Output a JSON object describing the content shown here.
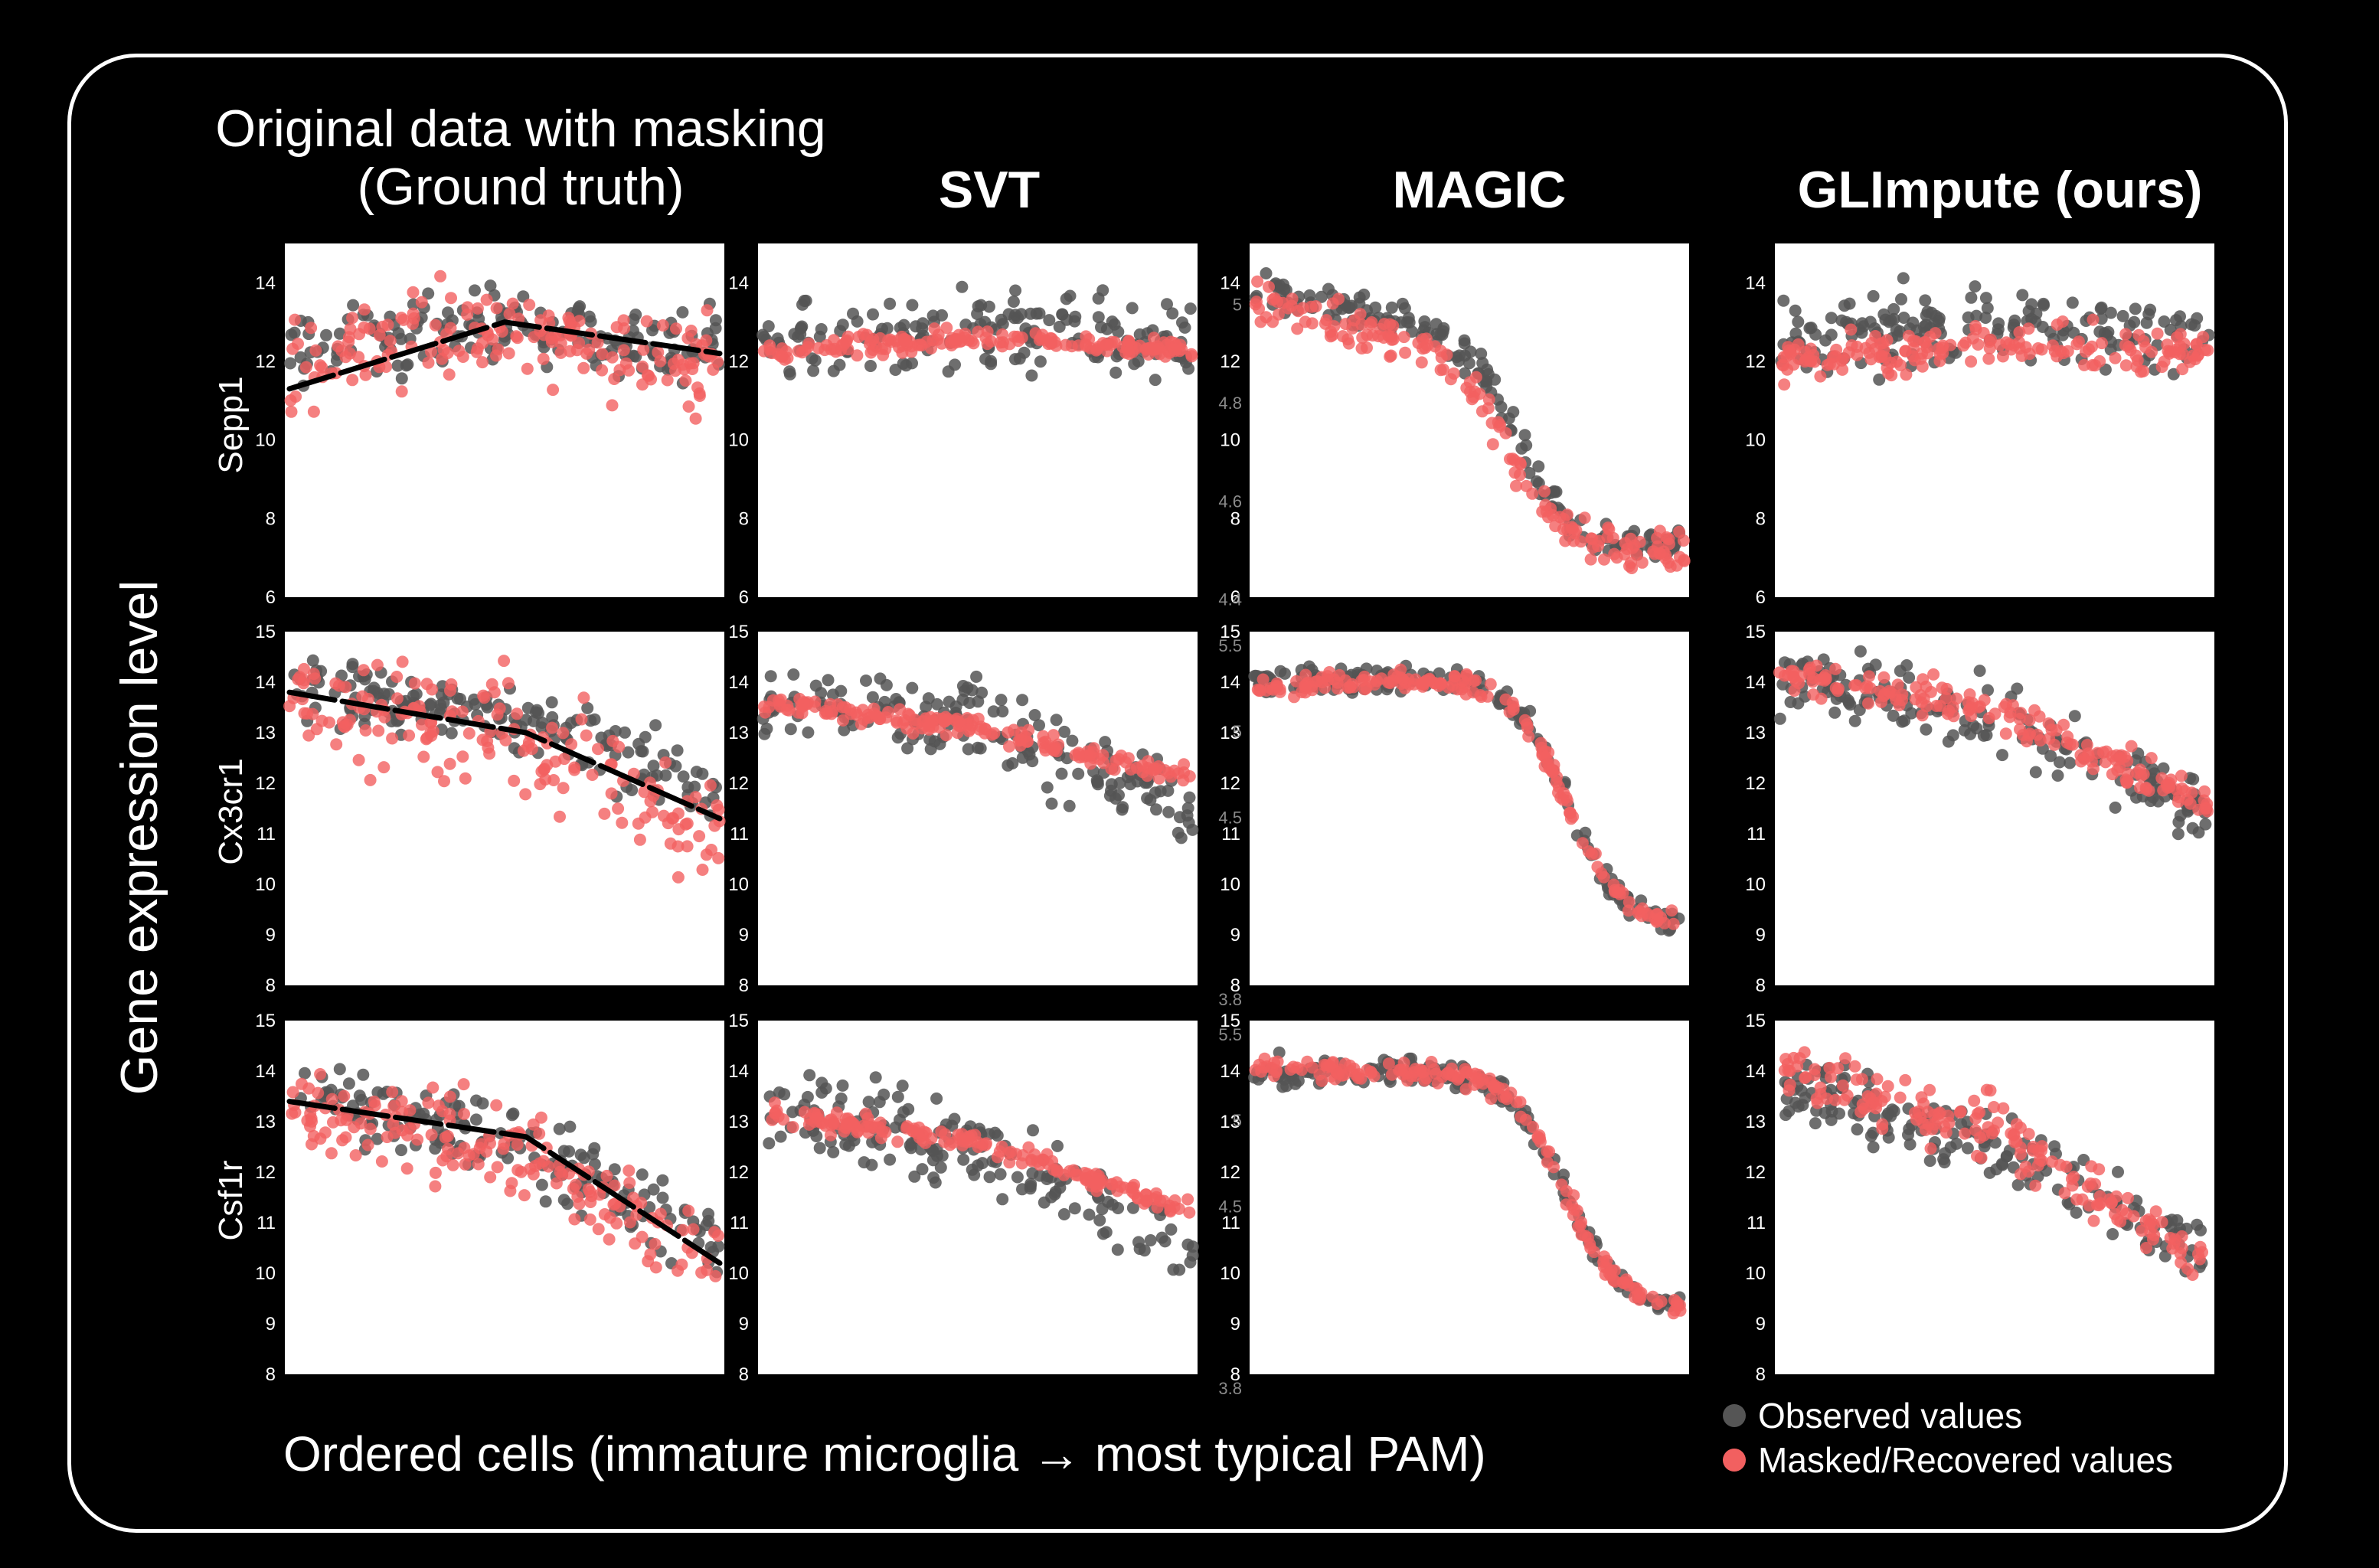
{
  "figure": {
    "column_titles": {
      "ground_truth_line1": "Original data with masking",
      "ground_truth_line2": "(Ground truth)",
      "svt": "SVT",
      "magic": "MAGIC",
      "glimpute": "GLImpute (ours)"
    },
    "ylabel": "Gene expression level",
    "xlabel": "Ordered cells (immature microglia → most typical PAM)",
    "genes": [
      "Sepp1",
      "Cx3cr1",
      "Csf1r"
    ],
    "legend": {
      "observed": "Observed values",
      "masked": "Masked/Recovered values"
    }
  },
  "colors": {
    "background": "#000000",
    "panel": "#ffffff",
    "observed": "#555555",
    "masked": "#f26060",
    "trend": "#000000"
  },
  "chart_data": [
    {
      "type": "scatter",
      "gene": "Sepp1",
      "method": "Original data with masking (Ground truth)",
      "ylim": [
        6,
        15
      ],
      "yticks": [
        6,
        8,
        10,
        12,
        14
      ],
      "trend_line": {
        "x": [
          0,
          0.5,
          1
        ],
        "y": [
          11.3,
          13.0,
          12.2
        ]
      },
      "series": [
        {
          "legend": "Observed values",
          "pattern": {
            "start": 12.3,
            "mid": 12.9,
            "end": 12.4,
            "spread": 0.9
          }
        },
        {
          "legend": "Masked/Recovered values",
          "pattern": {
            "start": 12.0,
            "mid": 12.8,
            "end": 12.0,
            "spread": 1.2
          }
        }
      ]
    },
    {
      "type": "scatter",
      "gene": "Sepp1",
      "method": "SVT",
      "ylim": [
        6,
        15
      ],
      "yticks": [
        6,
        8,
        10,
        12,
        14
      ],
      "series": [
        {
          "legend": "Observed values",
          "pattern": {
            "start": 12.4,
            "mid": 12.8,
            "end": 12.5,
            "spread": 1.0
          }
        },
        {
          "legend": "Masked/Recovered values",
          "pattern": {
            "start": 12.2,
            "mid": 12.6,
            "end": 12.3,
            "spread": 0.25
          }
        }
      ]
    },
    {
      "type": "scatter",
      "gene": "Sepp1",
      "method": "MAGIC",
      "ylim": [
        6,
        15
      ],
      "yticks": [
        6,
        8,
        10,
        12,
        14
      ],
      "secondary_yticks": [
        {
          "label": "5",
          "value": 13.8
        },
        {
          "label": "4.8",
          "value": 11.3
        },
        {
          "label": "4.6",
          "value": 8.8
        },
        {
          "label": "4.4",
          "value": 6.3
        }
      ],
      "series": [
        {
          "legend": "Observed values",
          "pattern": {
            "start": 13.8,
            "mid": 12.5,
            "end": 7.3,
            "spread": 0.4,
            "sigmoid_center": 0.62
          }
        },
        {
          "legend": "Masked/Recovered values",
          "pattern": {
            "start": 13.5,
            "mid": 12.0,
            "end": 7.2,
            "spread": 0.6,
            "sigmoid_center": 0.6
          }
        }
      ]
    },
    {
      "type": "scatter",
      "gene": "Sepp1",
      "method": "GLImpute (ours)",
      "ylim": [
        6,
        15
      ],
      "yticks": [
        6,
        8,
        10,
        12,
        14
      ],
      "series": [
        {
          "legend": "Observed values",
          "pattern": {
            "start": 12.5,
            "mid": 13.0,
            "end": 12.5,
            "spread": 0.9
          }
        },
        {
          "legend": "Masked/Recovered values",
          "pattern": {
            "start": 12.0,
            "mid": 12.5,
            "end": 12.2,
            "spread": 0.5
          }
        }
      ]
    },
    {
      "type": "scatter",
      "gene": "Cx3cr1",
      "method": "Original data with masking (Ground truth)",
      "ylim": [
        8,
        15
      ],
      "yticks": [
        8,
        9,
        10,
        11,
        12,
        13,
        14,
        15
      ],
      "trend_line": {
        "x": [
          0,
          0.55,
          1
        ],
        "y": [
          13.8,
          13.0,
          11.3
        ]
      },
      "series": [
        {
          "legend": "Observed values",
          "pattern": {
            "start": 13.8,
            "mid": 13.4,
            "end": 11.8,
            "spread": 0.7
          }
        },
        {
          "legend": "Masked/Recovered values",
          "pattern": {
            "start": 13.6,
            "mid": 13.0,
            "end": 11.0,
            "spread": 1.0
          }
        }
      ]
    },
    {
      "type": "scatter",
      "gene": "Cx3cr1",
      "method": "SVT",
      "ylim": [
        8,
        15
      ],
      "yticks": [
        8,
        9,
        10,
        11,
        12,
        13,
        14,
        15
      ],
      "series": [
        {
          "legend": "Observed values",
          "pattern": {
            "start": 13.7,
            "mid": 13.2,
            "end": 11.5,
            "spread": 0.8
          }
        },
        {
          "legend": "Masked/Recovered values",
          "pattern": {
            "start": 13.6,
            "mid": 13.1,
            "end": 12.1,
            "spread": 0.2
          }
        }
      ]
    },
    {
      "type": "scatter",
      "gene": "Cx3cr1",
      "method": "MAGIC",
      "ylim": [
        8,
        15
      ],
      "yticks": [
        8,
        9,
        10,
        11,
        12,
        13,
        14,
        15
      ],
      "secondary_yticks": [
        {
          "label": "5.5",
          "value": 15.0
        },
        {
          "label": "5",
          "value": 13.3
        },
        {
          "label": "4.5",
          "value": 11.6
        },
        {
          "label": "3.8",
          "value": 8.0
        }
      ],
      "series": [
        {
          "legend": "Observed values",
          "pattern": {
            "start": 14.0,
            "mid": 14.2,
            "end": 9.2,
            "spread": 0.25,
            "sigmoid_center": 0.72
          }
        },
        {
          "legend": "Masked/Recovered values",
          "pattern": {
            "start": 13.9,
            "mid": 14.2,
            "end": 9.2,
            "spread": 0.2,
            "sigmoid_center": 0.72
          }
        }
      ]
    },
    {
      "type": "scatter",
      "gene": "Cx3cr1",
      "method": "GLImpute (ours)",
      "ylim": [
        8,
        15
      ],
      "yticks": [
        8,
        9,
        10,
        11,
        12,
        13,
        14,
        15
      ],
      "series": [
        {
          "legend": "Observed values",
          "pattern": {
            "start": 14.0,
            "mid": 13.3,
            "end": 11.5,
            "spread": 0.7
          }
        },
        {
          "legend": "Masked/Recovered values",
          "pattern": {
            "start": 14.2,
            "mid": 13.4,
            "end": 11.6,
            "spread": 0.35
          }
        }
      ]
    },
    {
      "type": "scatter",
      "gene": "Csf1r",
      "method": "Original data with masking (Ground truth)",
      "ylim": [
        8,
        15
      ],
      "yticks": [
        8,
        9,
        10,
        11,
        12,
        13,
        14,
        15
      ],
      "trend_line": {
        "x": [
          0,
          0.55,
          1
        ],
        "y": [
          13.4,
          12.7,
          10.2
        ]
      },
      "series": [
        {
          "legend": "Observed values",
          "pattern": {
            "start": 13.5,
            "mid": 12.8,
            "end": 10.5,
            "spread": 0.7
          }
        },
        {
          "legend": "Masked/Recovered values",
          "pattern": {
            "start": 13.3,
            "mid": 12.5,
            "end": 10.2,
            "spread": 0.9
          }
        }
      ]
    },
    {
      "type": "scatter",
      "gene": "Csf1r",
      "method": "SVT",
      "ylim": [
        8,
        15
      ],
      "yticks": [
        8,
        9,
        10,
        11,
        12,
        13,
        14,
        15
      ],
      "series": [
        {
          "legend": "Observed values",
          "pattern": {
            "start": 13.3,
            "mid": 12.5,
            "end": 10.5,
            "spread": 0.8
          }
        },
        {
          "legend": "Masked/Recovered values",
          "pattern": {
            "start": 13.2,
            "mid": 12.6,
            "end": 11.2,
            "spread": 0.2
          }
        }
      ]
    },
    {
      "type": "scatter",
      "gene": "Csf1r",
      "method": "MAGIC",
      "ylim": [
        8,
        15
      ],
      "yticks": [
        8,
        9,
        10,
        11,
        12,
        13,
        14,
        15
      ],
      "secondary_yticks": [
        {
          "label": "5.5",
          "value": 15.0
        },
        {
          "label": "5",
          "value": 13.3
        },
        {
          "label": "4.5",
          "value": 11.6
        },
        {
          "label": "3.8",
          "value": 8.0
        }
      ],
      "series": [
        {
          "legend": "Observed values",
          "pattern": {
            "start": 14.0,
            "mid": 14.0,
            "end": 9.3,
            "spread": 0.25,
            "sigmoid_center": 0.72
          }
        },
        {
          "legend": "Masked/Recovered values",
          "pattern": {
            "start": 14.0,
            "mid": 14.0,
            "end": 9.3,
            "spread": 0.2,
            "sigmoid_center": 0.72
          }
        }
      ]
    },
    {
      "type": "scatter",
      "gene": "Csf1r",
      "method": "GLImpute (ours)",
      "ylim": [
        8,
        15
      ],
      "yticks": [
        8,
        9,
        10,
        11,
        12,
        13,
        14,
        15
      ],
      "series": [
        {
          "legend": "Observed values",
          "pattern": {
            "start": 13.6,
            "mid": 12.6,
            "end": 10.3,
            "spread": 0.7
          }
        },
        {
          "legend": "Masked/Recovered values",
          "pattern": {
            "start": 14.0,
            "mid": 12.9,
            "end": 10.0,
            "spread": 0.6
          }
        }
      ]
    }
  ]
}
